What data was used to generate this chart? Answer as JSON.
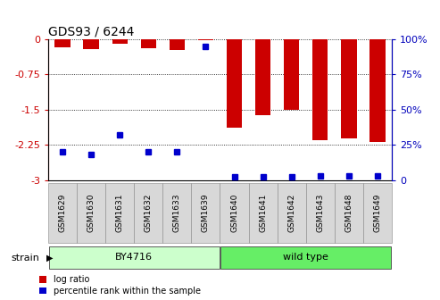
{
  "title": "GDS93 / 6244",
  "samples": [
    "GSM1629",
    "GSM1630",
    "GSM1631",
    "GSM1632",
    "GSM1633",
    "GSM1639",
    "GSM1640",
    "GSM1641",
    "GSM1642",
    "GSM1643",
    "GSM1648",
    "GSM1649"
  ],
  "log_ratios": [
    -0.18,
    -0.22,
    -0.1,
    -0.2,
    -0.23,
    -0.03,
    -1.88,
    -1.62,
    -1.5,
    -2.15,
    -2.12,
    -2.2
  ],
  "percentile_ranks": [
    20,
    18,
    32,
    20,
    20,
    95,
    2,
    2,
    2,
    3,
    3,
    3
  ],
  "strain_groups": [
    {
      "label": "BY4716",
      "start": 0,
      "end": 5,
      "color": "#ccffcc"
    },
    {
      "label": "wild type",
      "start": 6,
      "end": 11,
      "color": "#66ee66"
    }
  ],
  "yticks_left": [
    0,
    -0.75,
    -1.5,
    -2.25,
    -3
  ],
  "yticklabels_left": [
    "0",
    "-0.75",
    "-1.5",
    "-2.25",
    "-3"
  ],
  "yticklabels_right": [
    "100%",
    "75%",
    "50%",
    "25%",
    "0"
  ],
  "bar_color": "#cc0000",
  "dot_color": "#0000cc",
  "bar_width": 0.55,
  "background_color": "#ffffff",
  "axis_color_left": "#cc0000",
  "axis_color_right": "#0000bb",
  "legend_labels": [
    "log ratio",
    "percentile rank within the sample"
  ],
  "strain_label": "strain"
}
